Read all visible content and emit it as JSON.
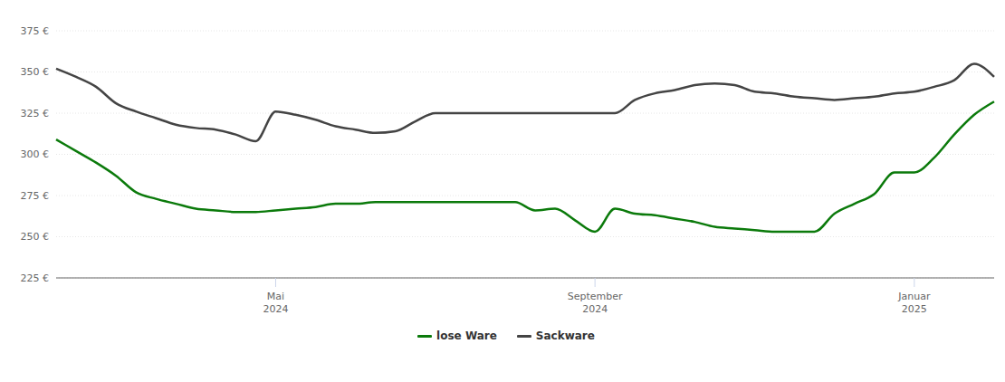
{
  "chart_data": {
    "type": "line",
    "categories": [
      null,
      null,
      null,
      null,
      null,
      null,
      null,
      null,
      null,
      null,
      null,
      "Mai 2024",
      null,
      null,
      null,
      null,
      null,
      null,
      null,
      null,
      null,
      null,
      null,
      null,
      null,
      null,
      null,
      "September 2024",
      null,
      null,
      null,
      null,
      null,
      null,
      null,
      null,
      null,
      null,
      null,
      null,
      null,
      null,
      null,
      "Januar 2025",
      null,
      null,
      null,
      null
    ],
    "series": [
      {
        "name": "lose Ware",
        "color": "#0b7a0b",
        "values": [
          309,
          302,
          295,
          287,
          277,
          273,
          270,
          267,
          266,
          265,
          265,
          266,
          267,
          268,
          270,
          270,
          271,
          271,
          271,
          271,
          271,
          271,
          271,
          271,
          266,
          267,
          260,
          253,
          267,
          264,
          263,
          261,
          259,
          256,
          255,
          254,
          253,
          253,
          253,
          264,
          270,
          276,
          289,
          289,
          298,
          312,
          324,
          332
        ]
      },
      {
        "name": "Sackware",
        "color": "#444444",
        "values": [
          352,
          347,
          341,
          331,
          326,
          322,
          318,
          316,
          315,
          312,
          308,
          326,
          324,
          321,
          317,
          315,
          313,
          314,
          320,
          325,
          325,
          325,
          325,
          325,
          325,
          325,
          325,
          325,
          325,
          333,
          337,
          339,
          342,
          343,
          342,
          338,
          337,
          335,
          334,
          333,
          334,
          335,
          337,
          338,
          341,
          345,
          355,
          347
        ]
      }
    ],
    "ylim": [
      225,
      375
    ],
    "yticks": [
      {
        "value": 225,
        "label": "225 €"
      },
      {
        "value": 250,
        "label": "250 €"
      },
      {
        "value": 275,
        "label": "275 €"
      },
      {
        "value": 300,
        "label": "300 €"
      },
      {
        "value": 325,
        "label": "325 €"
      },
      {
        "value": 350,
        "label": "350 €"
      },
      {
        "value": 375,
        "label": "375 €"
      }
    ],
    "grid": true,
    "legend": "bottom"
  }
}
